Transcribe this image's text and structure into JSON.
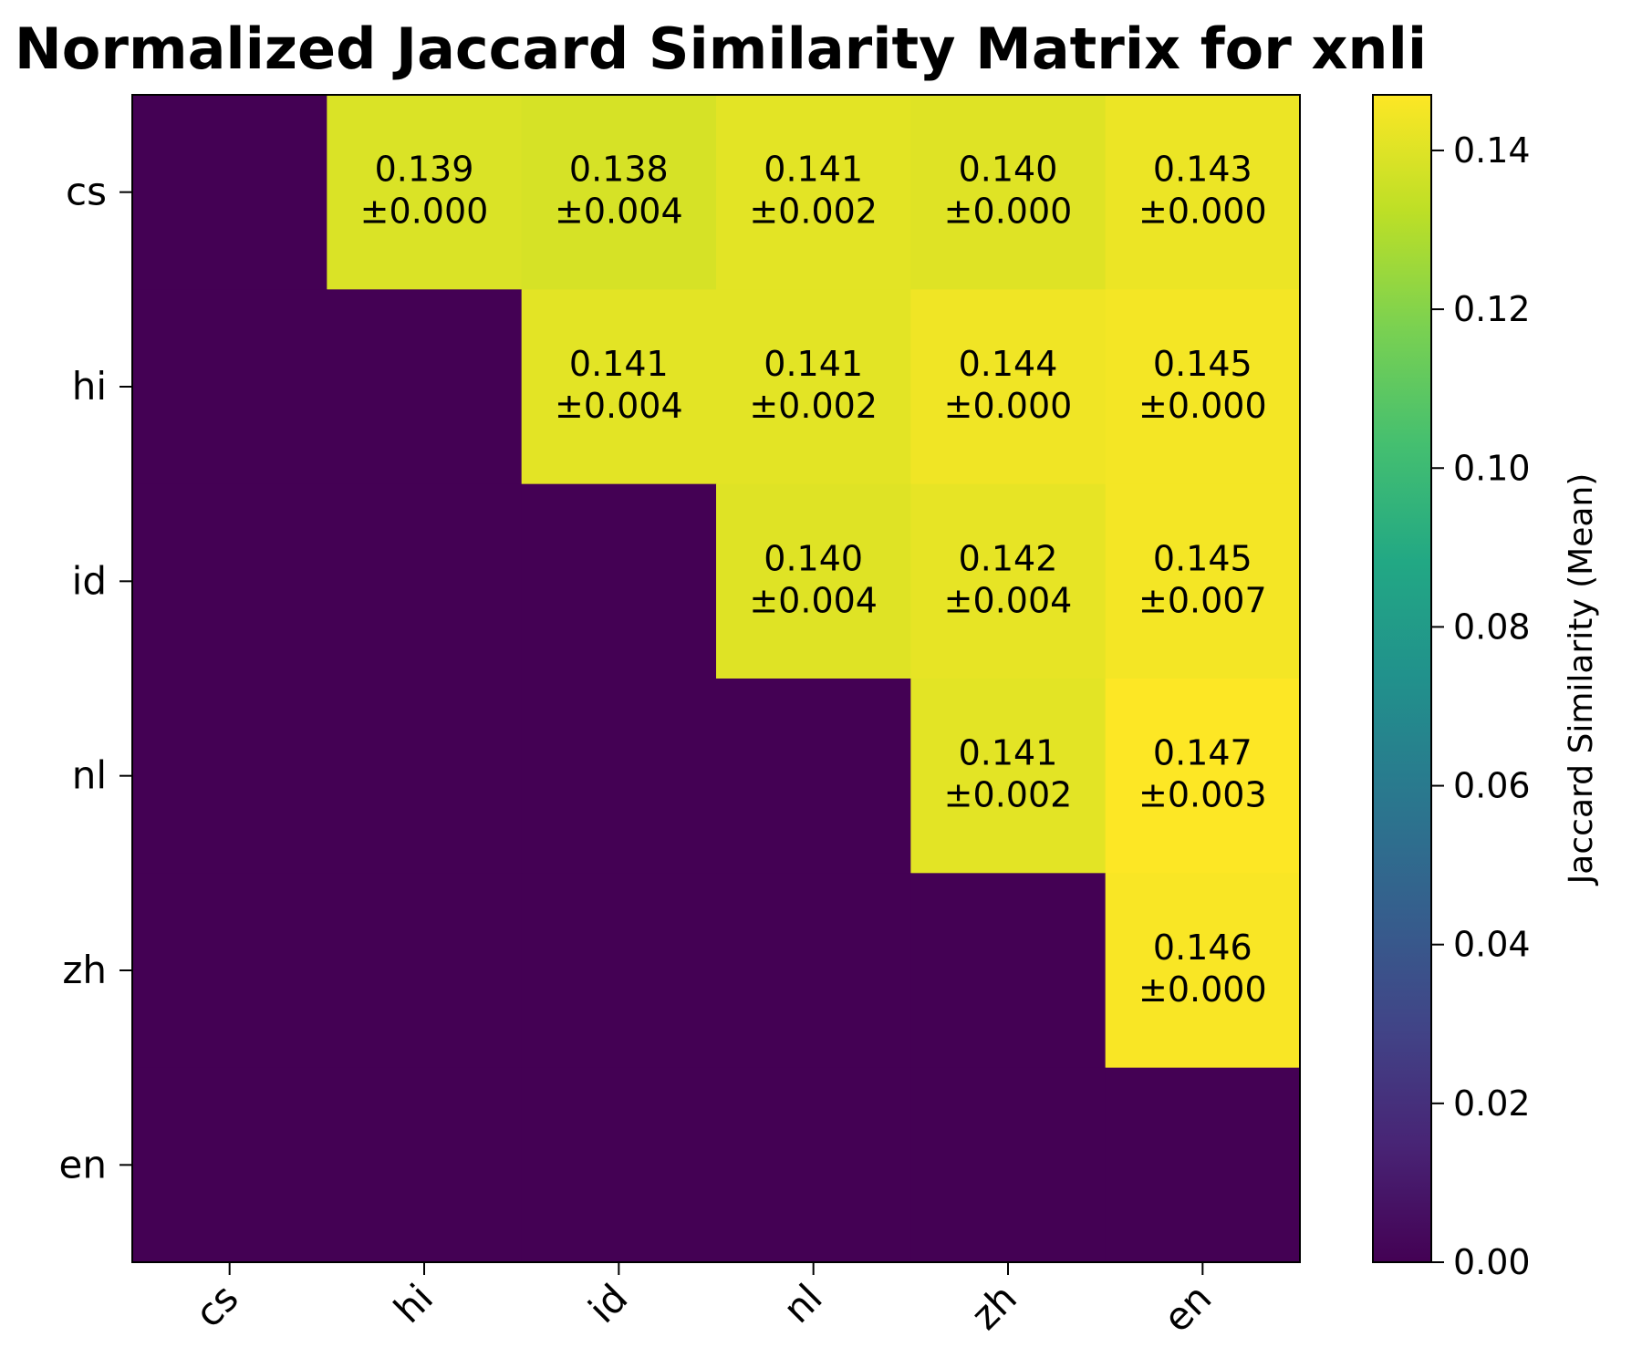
{
  "chart_data": {
    "type": "heatmap",
    "title": "Normalized Jaccard Similarity Matrix for xnli",
    "row_labels": [
      "cs",
      "hi",
      "id",
      "nl",
      "zh",
      "en"
    ],
    "col_labels": [
      "cs",
      "hi",
      "id",
      "nl",
      "zh",
      "en"
    ],
    "values": [
      [
        0,
        0.139,
        0.138,
        0.141,
        0.14,
        0.143
      ],
      [
        0,
        0,
        0.141,
        0.141,
        0.144,
        0.145
      ],
      [
        0,
        0,
        0,
        0.14,
        0.142,
        0.145
      ],
      [
        0,
        0,
        0,
        0,
        0.141,
        0.147
      ],
      [
        0,
        0,
        0,
        0,
        0,
        0.146
      ],
      [
        0,
        0,
        0,
        0,
        0,
        0
      ]
    ],
    "cell_text": [
      [
        null,
        [
          "0.139",
          "±0.000"
        ],
        [
          "0.138",
          "±0.004"
        ],
        [
          "0.141",
          "±0.002"
        ],
        [
          "0.140",
          "±0.000"
        ],
        [
          "0.143",
          "±0.000"
        ]
      ],
      [
        null,
        null,
        [
          "0.141",
          "±0.004"
        ],
        [
          "0.141",
          "±0.002"
        ],
        [
          "0.144",
          "±0.000"
        ],
        [
          "0.145",
          "±0.000"
        ]
      ],
      [
        null,
        null,
        null,
        [
          "0.140",
          "±0.004"
        ],
        [
          "0.142",
          "±0.004"
        ],
        [
          "0.145",
          "±0.007"
        ]
      ],
      [
        null,
        null,
        null,
        null,
        [
          "0.141",
          "±0.002"
        ],
        [
          "0.147",
          "±0.003"
        ]
      ],
      [
        null,
        null,
        null,
        null,
        null,
        [
          "0.146",
          "±0.000"
        ]
      ],
      [
        null,
        null,
        null,
        null,
        null,
        null
      ]
    ],
    "colorbar": {
      "label": "Jaccard Similarity (Mean)",
      "range": [
        0,
        0.147
      ],
      "ticks": [
        "0.00",
        "0.02",
        "0.04",
        "0.06",
        "0.08",
        "0.10",
        "0.12",
        "0.14"
      ],
      "colormap": "viridis"
    }
  }
}
